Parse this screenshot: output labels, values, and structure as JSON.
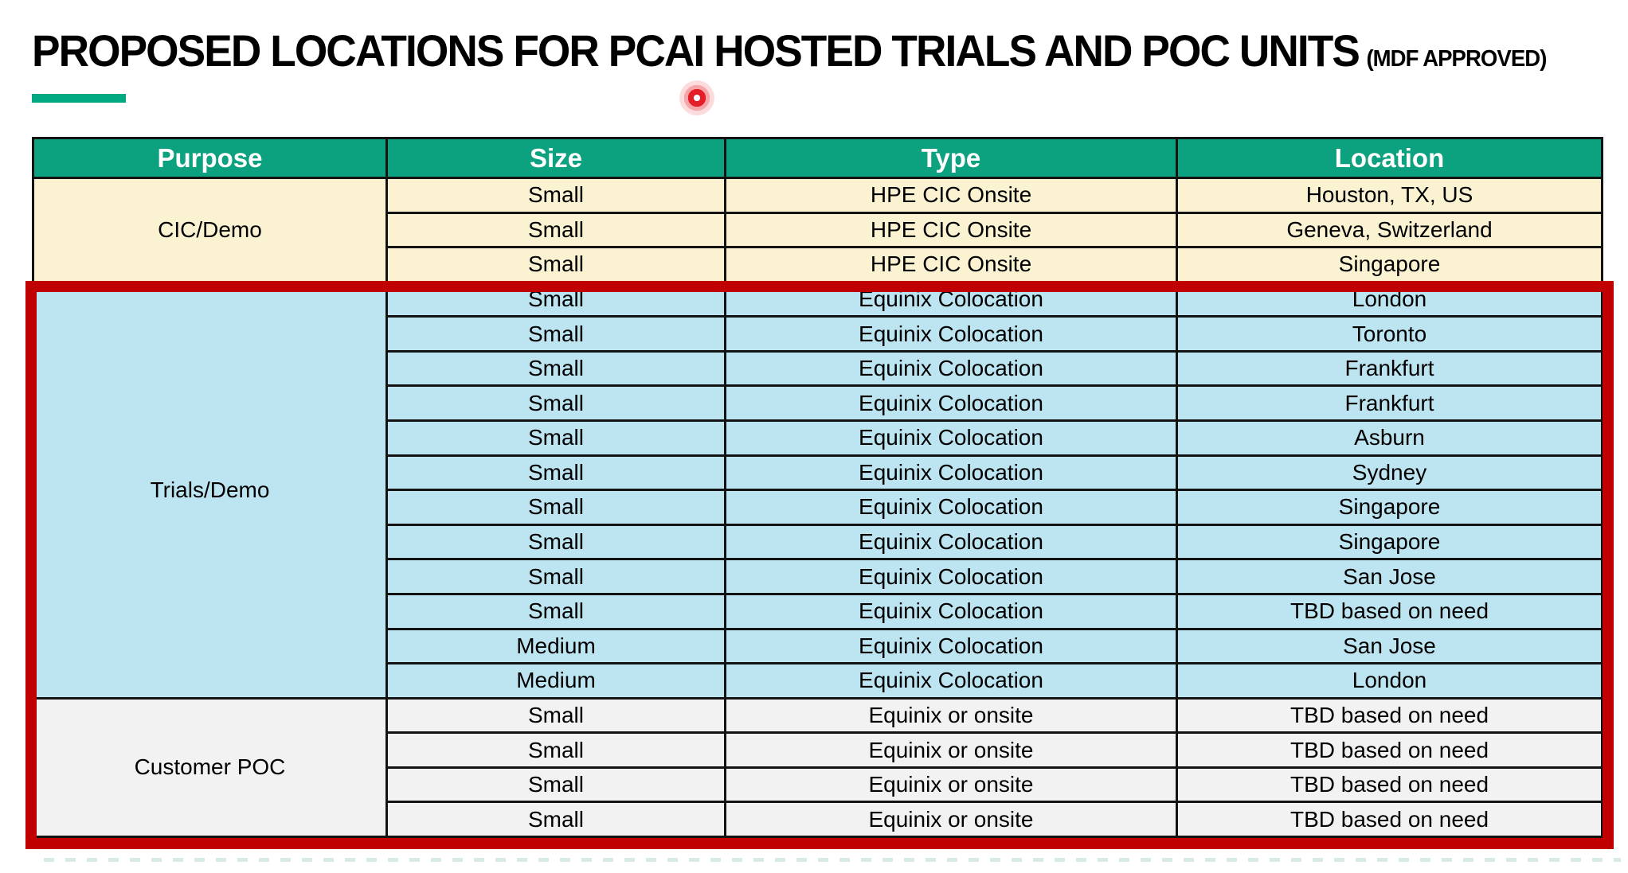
{
  "title": {
    "main": "PROPOSED LOCATIONS FOR PCAI HOSTED TRIALS AND POC UNITS",
    "suffix": "(MDF APPROVED)"
  },
  "table": {
    "headers": [
      "Purpose",
      "Size",
      "Type",
      "Location"
    ],
    "sections": [
      {
        "purpose": "CIC/Demo",
        "theme": "cream",
        "rows": [
          [
            "Small",
            "HPE CIC Onsite",
            "Houston, TX, US"
          ],
          [
            "Small",
            "HPE CIC Onsite",
            "Geneva, Switzerland"
          ],
          [
            "Small",
            "HPE CIC Onsite",
            "Singapore"
          ]
        ]
      },
      {
        "purpose": "Trials/Demo",
        "theme": "blue",
        "rows": [
          [
            "Small",
            "Equinix Colocation",
            "London"
          ],
          [
            "Small",
            "Equinix Colocation",
            "Toronto"
          ],
          [
            "Small",
            "Equinix Colocation",
            "Frankfurt"
          ],
          [
            "Small",
            "Equinix Colocation",
            "Frankfurt"
          ],
          [
            "Small",
            "Equinix Colocation",
            "Asburn"
          ],
          [
            "Small",
            "Equinix Colocation",
            "Sydney"
          ],
          [
            "Small",
            "Equinix Colocation",
            "Singapore"
          ],
          [
            "Small",
            "Equinix Colocation",
            "Singapore"
          ],
          [
            "Small",
            "Equinix Colocation",
            "San Jose"
          ],
          [
            "Small",
            "Equinix Colocation",
            "TBD based on need"
          ],
          [
            "Medium",
            "Equinix Colocation",
            "San Jose"
          ],
          [
            "Medium",
            "Equinix Colocation",
            "London"
          ]
        ]
      },
      {
        "purpose": "Customer POC",
        "theme": "gray",
        "rows": [
          [
            "Small",
            "Equinix or onsite",
            "TBD based on need"
          ],
          [
            "Small",
            "Equinix or onsite",
            "TBD based on need"
          ],
          [
            "Small",
            "Equinix or onsite",
            "TBD based on need"
          ],
          [
            "Small",
            "Equinix or onsite",
            "TBD based on need"
          ]
        ]
      }
    ]
  },
  "colors": {
    "header_green": "#0CA17F",
    "underline_green": "#01A982",
    "section_cream": "#FBF2D2",
    "section_blue": "#BCE4F1",
    "section_gray": "#F2F2F2",
    "highlight_red": "#C00000",
    "laser_red": "#E31E26"
  },
  "annotations": {
    "highlight_box": "red-rectangle-around-trials-and-poc-sections",
    "laser_pointer": "red-dot-below-title"
  }
}
